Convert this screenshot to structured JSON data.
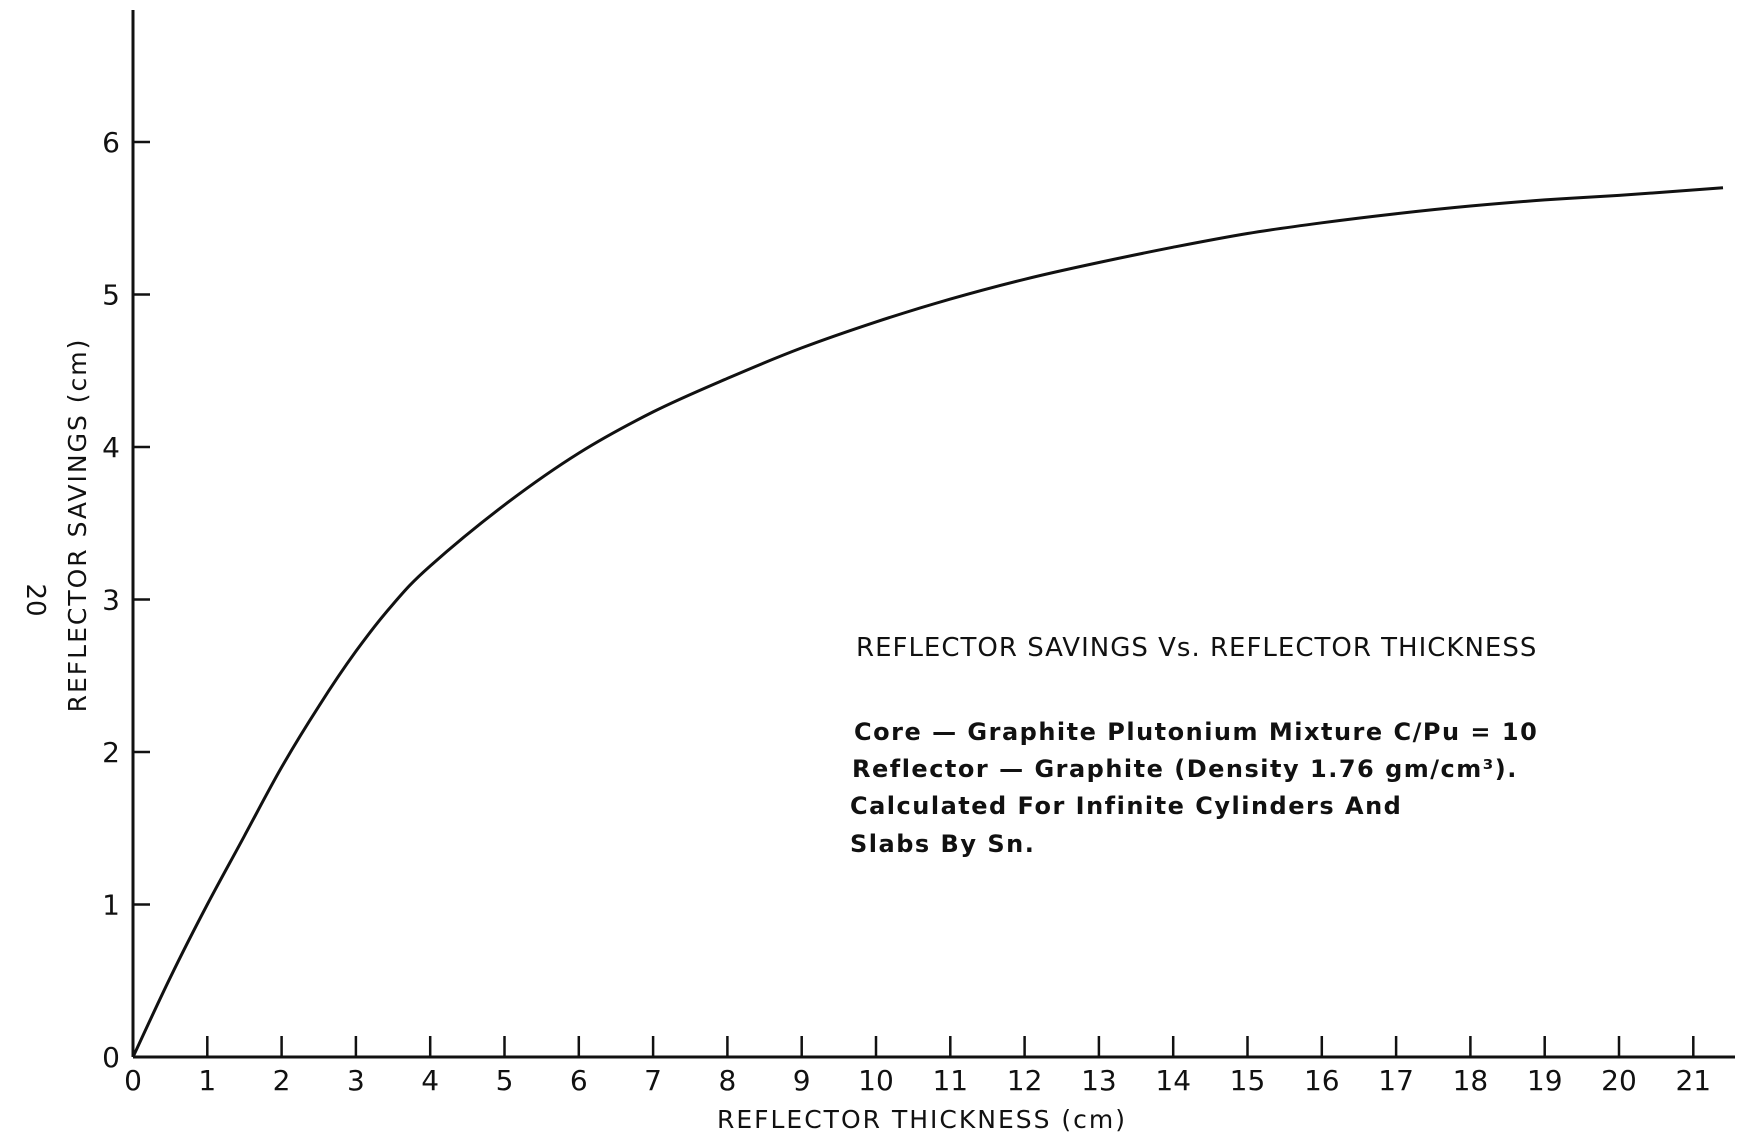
{
  "page_number": "20",
  "chart_data": {
    "type": "line",
    "xlabel": "REFLECTOR THICKNESS (cm)",
    "ylabel": "REFLECTOR SAVINGS (cm)",
    "xlim": [
      0,
      21.2
    ],
    "ylim": [
      0,
      6.9
    ],
    "x_ticks": [
      "0",
      "1",
      "2",
      "3",
      "4",
      "5",
      "6",
      "7",
      "8",
      "9",
      "10",
      "11",
      "12",
      "13",
      "14",
      "15",
      "16",
      "17",
      "18",
      "19",
      "20",
      "21"
    ],
    "y_ticks": [
      "0",
      "1",
      "2",
      "3",
      "4",
      "5",
      "6"
    ],
    "grid": false,
    "line_color": "#111111",
    "series": [
      {
        "x": [
          0,
          0.5,
          1,
          1.5,
          2,
          2.5,
          3,
          3.5,
          4,
          5,
          6,
          7,
          8,
          9,
          10,
          11,
          12,
          13,
          14,
          15,
          16,
          17,
          18,
          19,
          20,
          21.4
        ],
        "y": [
          0,
          0.52,
          1.0,
          1.45,
          1.9,
          2.3,
          2.66,
          2.97,
          3.22,
          3.62,
          3.96,
          4.23,
          4.45,
          4.65,
          4.82,
          4.97,
          5.1,
          5.21,
          5.31,
          5.4,
          5.47,
          5.53,
          5.58,
          5.62,
          5.65,
          5.7
        ]
      }
    ],
    "annotation": {
      "title": "REFLECTOR SAVINGS Vs. REFLECTOR THICKNESS",
      "lines": [
        "Core — Graphite Plutonium Mixture C/Pu = 10",
        "Reflector — Graphite (Density 1.76 gm/cm³).",
        "Calculated For Infinite Cylinders And",
        "Slabs By Sn."
      ]
    }
  }
}
